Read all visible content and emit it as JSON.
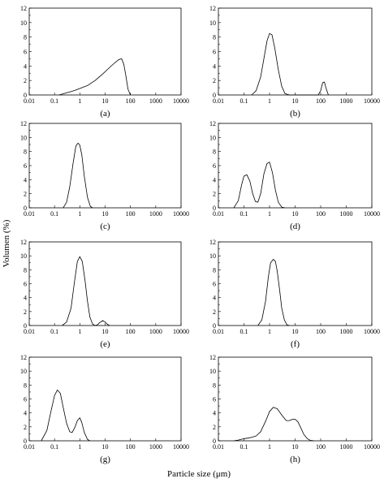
{
  "figure": {
    "ylabel": "Volumen (%)",
    "xlabel": "Particle size (μm)"
  },
  "chart_data": [
    {
      "type": "line",
      "label": "(a)",
      "xscale": "log",
      "xlim": [
        0.01,
        10000
      ],
      "ylim": [
        0,
        12
      ],
      "x_ticks": [
        "0.01",
        "0.1",
        "1",
        "10",
        "100",
        "1000",
        "10000"
      ],
      "y_ticks": [
        "0",
        "2",
        "4",
        "6",
        "8",
        "10",
        "12"
      ],
      "x": [
        0.15,
        0.3,
        0.6,
        1,
        2,
        4,
        8,
        15,
        25,
        35,
        45,
        55,
        65,
        80,
        100
      ],
      "y": [
        0,
        0.3,
        0.6,
        0.9,
        1.3,
        2.0,
        2.9,
        3.8,
        4.5,
        4.9,
        5.0,
        4.2,
        2.8,
        0.8,
        0
      ]
    },
    {
      "type": "line",
      "label": "(b)",
      "xscale": "log",
      "xlim": [
        0.01,
        10000
      ],
      "ylim": [
        0,
        12
      ],
      "x_ticks": [
        "0.01",
        "0.1",
        "1",
        "10",
        "100",
        "1000",
        "10000"
      ],
      "y_ticks": [
        "0",
        "2",
        "4",
        "6",
        "8",
        "10",
        "12"
      ],
      "x": [
        0.2,
        0.3,
        0.45,
        0.6,
        0.8,
        1.0,
        1.25,
        1.6,
        2.2,
        3,
        4,
        6,
        10,
        20,
        50,
        80,
        100,
        120,
        140,
        160,
        200
      ],
      "y": [
        0,
        0.6,
        2.5,
        5.0,
        7.5,
        8.5,
        8.3,
        6.5,
        3.5,
        1.2,
        0.2,
        0,
        0,
        0,
        0,
        0,
        0.6,
        1.7,
        1.8,
        1.0,
        0
      ]
    },
    {
      "type": "line",
      "label": "(c)",
      "xscale": "log",
      "xlim": [
        0.01,
        10000
      ],
      "ylim": [
        0,
        12
      ],
      "x_ticks": [
        "0.01",
        "0.1",
        "1",
        "10",
        "100",
        "1000",
        "10000"
      ],
      "y_ticks": [
        "0",
        "2",
        "4",
        "6",
        "8",
        "10",
        "12"
      ],
      "x": [
        0.22,
        0.3,
        0.4,
        0.55,
        0.7,
        0.85,
        1.0,
        1.2,
        1.5,
        2.0,
        2.6,
        3.2
      ],
      "y": [
        0,
        0.8,
        3.0,
        6.5,
        8.8,
        9.2,
        8.9,
        7.5,
        4.5,
        1.5,
        0.2,
        0
      ]
    },
    {
      "type": "line",
      "label": "(d)",
      "xscale": "log",
      "xlim": [
        0.01,
        10000
      ],
      "ylim": [
        0,
        12
      ],
      "x_ticks": [
        "0.01",
        "0.1",
        "1",
        "10",
        "100",
        "1000",
        "10000"
      ],
      "y_ticks": [
        "0",
        "2",
        "4",
        "6",
        "8",
        "10",
        "12"
      ],
      "x": [
        0.04,
        0.06,
        0.08,
        0.1,
        0.13,
        0.17,
        0.22,
        0.28,
        0.35,
        0.45,
        0.6,
        0.8,
        1.0,
        1.3,
        1.7,
        2.2,
        3.0,
        4.0
      ],
      "y": [
        0,
        1.0,
        3.2,
        4.5,
        4.7,
        3.8,
        2.0,
        0.9,
        0.8,
        2.0,
        4.8,
        6.3,
        6.5,
        5.0,
        2.5,
        0.8,
        0.1,
        0
      ]
    },
    {
      "type": "line",
      "label": "(e)",
      "xscale": "log",
      "xlim": [
        0.01,
        10000
      ],
      "ylim": [
        0,
        12
      ],
      "x_ticks": [
        "0.01",
        "0.1",
        "1",
        "10",
        "100",
        "1000",
        "10000"
      ],
      "y_ticks": [
        "0",
        "2",
        "4",
        "6",
        "8",
        "10",
        "12"
      ],
      "x": [
        0.2,
        0.3,
        0.45,
        0.6,
        0.8,
        1.0,
        1.25,
        1.6,
        2.0,
        2.5,
        3.2,
        4,
        5,
        6,
        8,
        10,
        12,
        15
      ],
      "y": [
        0,
        0.5,
        2.5,
        6.0,
        9.2,
        9.9,
        9.2,
        6.5,
        3.5,
        1.2,
        0.2,
        0,
        0.1,
        0.4,
        0.7,
        0.5,
        0.2,
        0
      ]
    },
    {
      "type": "line",
      "label": "(f)",
      "xscale": "log",
      "xlim": [
        0.01,
        10000
      ],
      "ylim": [
        0,
        12
      ],
      "x_ticks": [
        "0.01",
        "0.1",
        "1",
        "10",
        "100",
        "1000",
        "10000"
      ],
      "y_ticks": [
        "0",
        "2",
        "4",
        "6",
        "8",
        "10",
        "12"
      ],
      "x": [
        0.35,
        0.5,
        0.7,
        0.9,
        1.1,
        1.4,
        1.7,
        2.0,
        2.5,
        3.0,
        3.8,
        4.8,
        6.0
      ],
      "y": [
        0,
        0.8,
        3.5,
        7.0,
        9.0,
        9.5,
        9.2,
        7.8,
        5.0,
        2.5,
        0.8,
        0.1,
        0
      ]
    },
    {
      "type": "line",
      "label": "(g)",
      "xscale": "log",
      "xlim": [
        0.01,
        10000
      ],
      "ylim": [
        0,
        12
      ],
      "x_ticks": [
        "0.01",
        "0.1",
        "1",
        "10",
        "100",
        "1000",
        "10000"
      ],
      "y_ticks": [
        "0",
        "2",
        "4",
        "6",
        "8",
        "10",
        "12"
      ],
      "x": [
        0.03,
        0.05,
        0.07,
        0.1,
        0.13,
        0.17,
        0.22,
        0.3,
        0.4,
        0.5,
        0.65,
        0.8,
        1.0,
        1.2,
        1.5,
        2.0,
        2.5
      ],
      "y": [
        0,
        1.5,
        4.0,
        6.5,
        7.3,
        6.8,
        4.8,
        2.5,
        1.3,
        1.2,
        2.0,
        2.9,
        3.3,
        2.6,
        1.2,
        0.2,
        0
      ]
    },
    {
      "type": "line",
      "label": "(h)",
      "xscale": "log",
      "xlim": [
        0.01,
        10000
      ],
      "ylim": [
        0,
        12
      ],
      "x_ticks": [
        "0.01",
        "0.1",
        "1",
        "10",
        "100",
        "1000",
        "10000"
      ],
      "y_ticks": [
        "0",
        "2",
        "4",
        "6",
        "8",
        "10",
        "12"
      ],
      "x": [
        0.04,
        0.06,
        0.1,
        0.15,
        0.2,
        0.3,
        0.45,
        0.7,
        1.0,
        1.4,
        2.0,
        3.0,
        4.5,
        6,
        8,
        10,
        13,
        17,
        22,
        30,
        40,
        55
      ],
      "y": [
        0,
        0.1,
        0.3,
        0.4,
        0.5,
        0.7,
        1.3,
        2.8,
        4.2,
        4.8,
        4.6,
        3.7,
        2.9,
        2.9,
        3.1,
        3.1,
        2.7,
        1.8,
        0.9,
        0.3,
        0.05,
        0
      ]
    }
  ]
}
